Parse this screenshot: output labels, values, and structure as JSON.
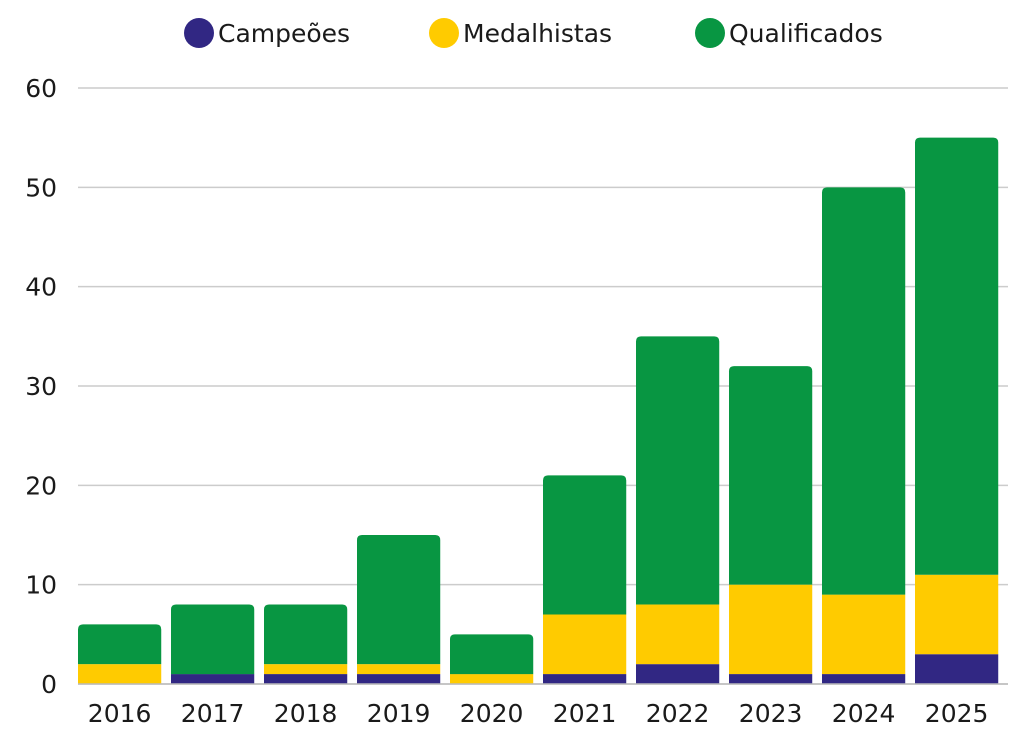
{
  "chart_data": {
    "type": "bar",
    "stacked": true,
    "title": "",
    "xlabel": "",
    "ylabel": "",
    "categories": [
      "2016",
      "2017",
      "2018",
      "2019",
      "2020",
      "2021",
      "2022",
      "2023",
      "2024",
      "2025"
    ],
    "series": [
      {
        "name": "Campeões",
        "color": "#312783",
        "values": [
          0,
          1,
          1,
          1,
          0,
          1,
          2,
          1,
          1,
          3
        ]
      },
      {
        "name": "Medalhistas",
        "color": "#ffcb00",
        "values": [
          2,
          0,
          1,
          1,
          1,
          6,
          6,
          9,
          8,
          8
        ]
      },
      {
        "name": "Qualificados",
        "color": "#089642",
        "values": [
          4,
          7,
          6,
          13,
          4,
          14,
          27,
          22,
          41,
          44
        ]
      }
    ],
    "totals": [
      6,
      8,
      8,
      15,
      5,
      21,
      35,
      32,
      50,
      55
    ],
    "ylim": [
      0,
      60
    ],
    "yticks": [
      "0",
      "10",
      "20",
      "30",
      "40",
      "50",
      "60"
    ],
    "grid": true,
    "legend_position": "top-center"
  }
}
